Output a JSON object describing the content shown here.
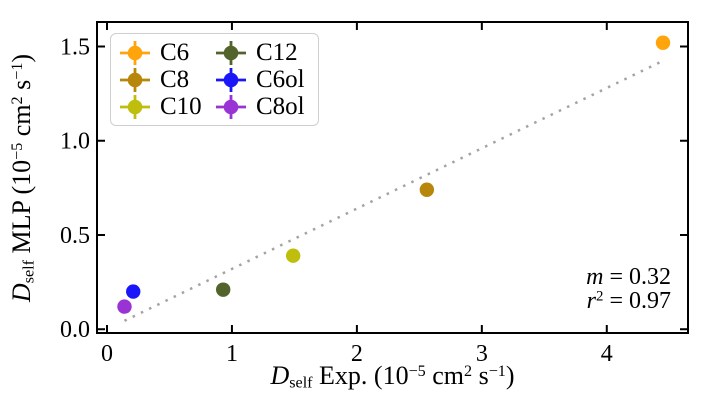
{
  "figure": {
    "background": "#FFFFFF",
    "xlabel_rich": "*D*_{self} Exp. (10^{−5} cm^{2} s^{−1})",
    "ylabel_rich": "*D*_{self} MLP (10^{−5} cm^{2} s^{−1})"
  },
  "chart_data": {
    "type": "scatter",
    "title": "",
    "xlabel": "D_self Exp. (10^-5 cm^2 s^-1)",
    "ylabel": "D_self MLP (10^-5 cm^2 s^-1)",
    "xlim": [
      -0.08,
      4.65
    ],
    "ylim": [
      -0.02,
      1.63
    ],
    "xticks": [
      0,
      1,
      2,
      3,
      4
    ],
    "xtick_labels": [
      "0",
      "1",
      "2",
      "3",
      "4"
    ],
    "yticks": [
      0,
      0.5,
      1.0,
      1.5
    ],
    "ytick_labels": [
      "0.0",
      "0.5",
      "1.0",
      "1.5"
    ],
    "grid": false,
    "axis_color": "#000000",
    "legend": {
      "position": "upper-left",
      "columns": 2,
      "order_row_major": [
        "C6",
        "C12",
        "C8",
        "C6ol",
        "C10",
        "C8ol"
      ],
      "marker": "circle-with-errorbars"
    },
    "series": [
      {
        "name": "C6",
        "color": "#FFA40B",
        "points": [
          [
            4.45,
            1.52
          ]
        ]
      },
      {
        "name": "C8",
        "color": "#B8860B",
        "points": [
          [
            2.56,
            0.74
          ]
        ]
      },
      {
        "name": "C10",
        "color": "#BFBE0C",
        "points": [
          [
            1.49,
            0.39
          ]
        ]
      },
      {
        "name": "C12",
        "color": "#53632C",
        "points": [
          [
            0.93,
            0.21
          ]
        ]
      },
      {
        "name": "C6ol",
        "color": "#1A16FA",
        "points": [
          [
            0.21,
            0.2
          ]
        ]
      },
      {
        "name": "C8ol",
        "color": "#9933D4",
        "points": [
          [
            0.14,
            0.12
          ]
        ]
      }
    ],
    "marker_radius_px": 7.2,
    "fit_line": {
      "slope": 0.32,
      "intercept": 0,
      "x_range": [
        0.14,
        4.44
      ],
      "style": "dotted",
      "color": "#A3A3A3"
    },
    "annotations": [
      {
        "text": "m = 0.32",
        "rich": "*m* = 0.32"
      },
      {
        "text": "r^2 = 0.97",
        "rich": "*r*^{2} = 0.97"
      }
    ]
  }
}
